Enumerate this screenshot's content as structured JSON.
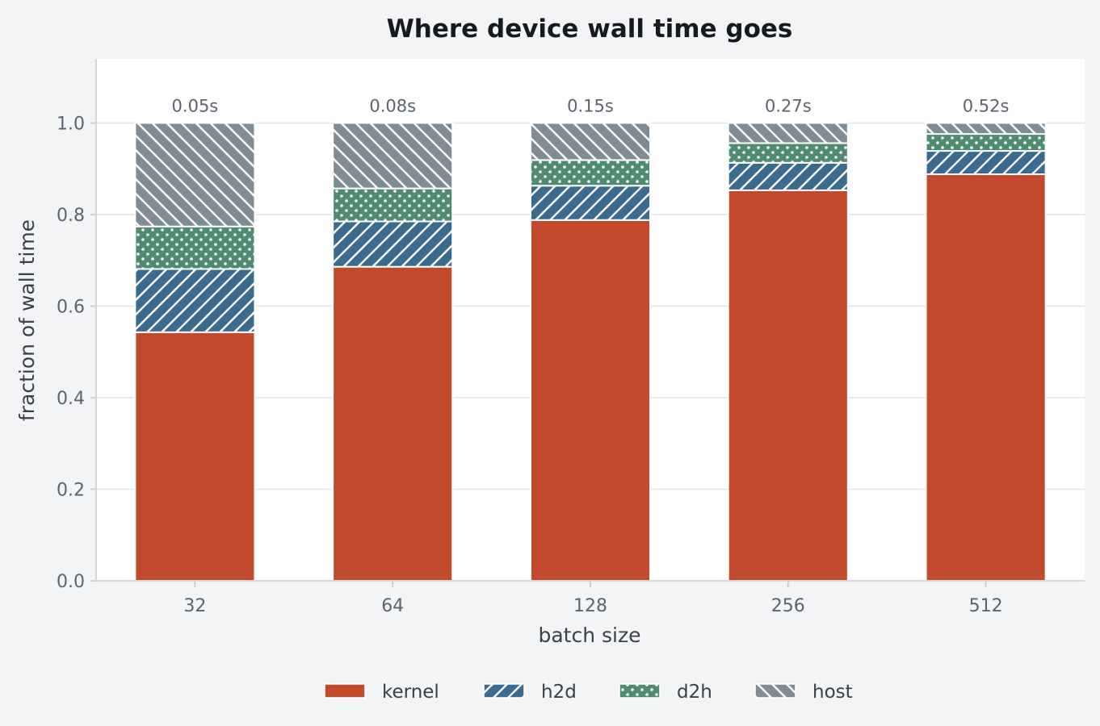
{
  "chart_data": {
    "type": "bar",
    "stacked": true,
    "title": "Where device wall time goes",
    "xlabel": "batch size",
    "ylabel": "fraction of wall time",
    "categories": [
      "32",
      "64",
      "128",
      "256",
      "512"
    ],
    "ylim": [
      0,
      1.14
    ],
    "yticks": [
      "0.0",
      "0.2",
      "0.4",
      "0.6",
      "0.8",
      "1.0"
    ],
    "grid": true,
    "legend_position": "bottom-center",
    "totals": [
      "0.05s",
      "0.08s",
      "0.15s",
      "0.27s",
      "0.52s"
    ],
    "series": [
      {
        "name": "kernel",
        "color": "#c3492d",
        "pattern": "solid",
        "values": [
          0.543,
          0.686,
          0.788,
          0.853,
          0.888
        ]
      },
      {
        "name": "h2d",
        "color": "#3b6a8f",
        "pattern": "diagonal",
        "values": [
          0.138,
          0.099,
          0.075,
          0.06,
          0.051
        ]
      },
      {
        "name": "d2h",
        "color": "#4f8a72",
        "pattern": "dots",
        "values": [
          0.093,
          0.072,
          0.056,
          0.043,
          0.037
        ]
      },
      {
        "name": "host",
        "color": "#7f8b95",
        "pattern": "backslash",
        "values": [
          0.226,
          0.143,
          0.081,
          0.044,
          0.024
        ]
      }
    ]
  }
}
